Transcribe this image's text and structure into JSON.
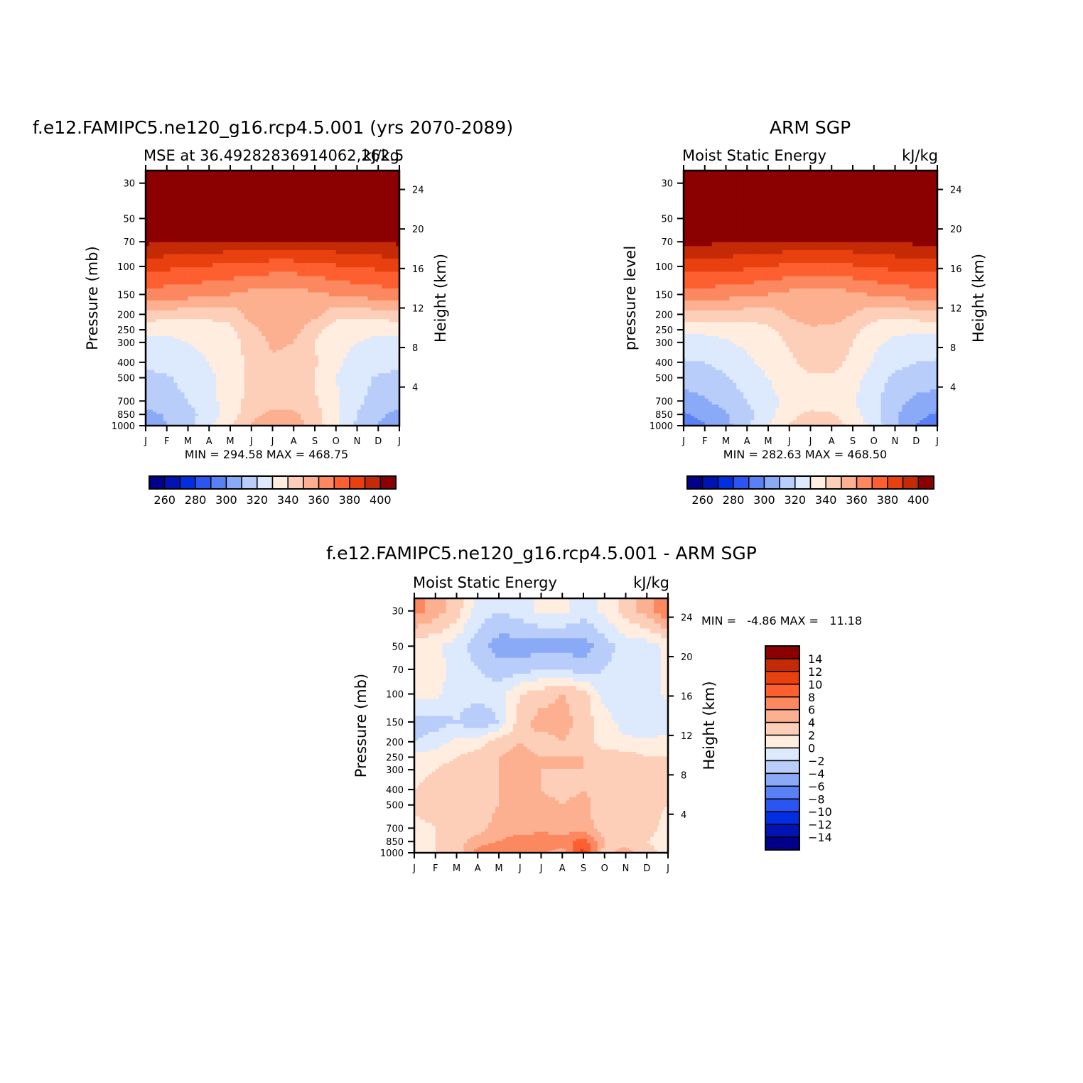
{
  "chart_data": [
    {
      "type": "heatmap",
      "title": "f.e12.FAMIPC5.ne120_g16.rcp4.5.001 (yrs 2070-2089)",
      "subtitle_left": "MSE at 36.49282836914062,262.5",
      "subtitle_right": "kJ/kg",
      "ylabel": "Pressure (mb)",
      "ylabel_right": "Height (km)",
      "x_ticks": [
        "J",
        "F",
        "M",
        "A",
        "M",
        "J",
        "J",
        "A",
        "S",
        "O",
        "N",
        "D",
        "J"
      ],
      "y_ticks": [
        "30",
        "50",
        "70",
        "100",
        "150",
        "200",
        "250",
        "300",
        "400",
        "500",
        "700",
        "850",
        "1000"
      ],
      "y_ticks_right": [
        "24",
        "20",
        "16",
        "12",
        "8",
        "4"
      ],
      "stats": "MIN = 294.58 MAX = 468.75",
      "colorbar_ticks": [
        "260",
        "280",
        "300",
        "320",
        "340",
        "360",
        "380",
        "400"
      ],
      "levels": [
        250,
        260,
        270,
        280,
        290,
        300,
        310,
        320,
        330,
        340,
        350,
        360,
        370,
        380,
        390,
        400
      ],
      "values_by_level": [
        {
          "p": 30,
          "values": [
            468,
            468,
            468,
            468,
            468,
            468,
            468,
            468,
            468,
            468,
            468,
            468,
            468
          ]
        },
        {
          "p": 50,
          "values": [
            460,
            460,
            460,
            460,
            460,
            460,
            460,
            460,
            460,
            460,
            460,
            460,
            460
          ]
        },
        {
          "p": 70,
          "values": [
            392,
            391,
            390,
            389,
            388,
            387,
            386,
            386,
            387,
            388,
            389,
            391,
            392
          ]
        },
        {
          "p": 100,
          "values": [
            373,
            372,
            371,
            369,
            368,
            366,
            365,
            365,
            367,
            369,
            371,
            372,
            373
          ]
        },
        {
          "p": 150,
          "values": [
            356,
            355,
            354,
            352,
            350,
            347,
            345,
            345,
            348,
            351,
            353,
            355,
            356
          ]
        },
        {
          "p": 200,
          "values": [
            336,
            335,
            334,
            333,
            333,
            345,
            350,
            350,
            343,
            333,
            333,
            335,
            336
          ]
        },
        {
          "p": 250,
          "values": [
            322,
            322,
            323,
            325,
            328,
            337,
            345,
            344,
            333,
            325,
            323,
            322,
            322
          ]
        },
        {
          "p": 300,
          "values": [
            318,
            318,
            320,
            323,
            326,
            334,
            342,
            340,
            330,
            323,
            320,
            318,
            318
          ]
        },
        {
          "p": 400,
          "values": [
            312,
            313,
            316,
            320,
            325,
            333,
            338,
            337,
            331,
            322,
            316,
            313,
            312
          ]
        },
        {
          "p": 500,
          "values": [
            308,
            309,
            313,
            318,
            324,
            333,
            336,
            335,
            330,
            320,
            313,
            309,
            308
          ]
        },
        {
          "p": 700,
          "values": [
            304,
            306,
            310,
            316,
            326,
            333,
            336,
            335,
            331,
            322,
            312,
            306,
            304
          ]
        },
        {
          "p": 850,
          "values": [
            297,
            301,
            307,
            314,
            325,
            337,
            343,
            342,
            334,
            322,
            310,
            302,
            297
          ]
        },
        {
          "p": 1000,
          "values": [
            295,
            300,
            307,
            318,
            330,
            341,
            346,
            345,
            336,
            322,
            308,
            299,
            295
          ]
        }
      ]
    },
    {
      "type": "heatmap",
      "title": "ARM SGP",
      "subtitle_left": "Moist Static Energy",
      "subtitle_right": "kJ/kg",
      "ylabel": "pressure level",
      "ylabel_right": "Height (km)",
      "x_ticks": [
        "J",
        "F",
        "M",
        "A",
        "M",
        "J",
        "J",
        "A",
        "S",
        "O",
        "N",
        "D",
        "J"
      ],
      "y_ticks": [
        "30",
        "50",
        "70",
        "100",
        "150",
        "200",
        "250",
        "300",
        "400",
        "500",
        "700",
        "850",
        "1000"
      ],
      "y_ticks_right": [
        "24",
        "20",
        "16",
        "12",
        "8",
        "4"
      ],
      "stats": "MIN = 282.63 MAX = 468.50",
      "colorbar_ticks": [
        "260",
        "280",
        "300",
        "320",
        "340",
        "360",
        "380",
        "400"
      ],
      "levels": [
        250,
        260,
        270,
        280,
        290,
        300,
        310,
        320,
        330,
        340,
        350,
        360,
        370,
        380,
        390,
        400
      ],
      "values_by_level": [
        {
          "p": 30,
          "values": [
            468,
            468,
            468,
            468,
            468,
            468,
            468,
            468,
            468,
            468,
            468,
            468,
            468
          ]
        },
        {
          "p": 50,
          "values": [
            460,
            460,
            460,
            460,
            460,
            460,
            460,
            460,
            460,
            460,
            460,
            460,
            460
          ]
        },
        {
          "p": 70,
          "values": [
            393,
            392,
            391,
            390,
            389,
            388,
            387,
            387,
            388,
            389,
            390,
            392,
            393
          ]
        },
        {
          "p": 100,
          "values": [
            375,
            374,
            373,
            372,
            370,
            368,
            367,
            367,
            369,
            371,
            373,
            374,
            375
          ]
        },
        {
          "p": 150,
          "values": [
            356,
            355,
            354,
            352,
            350,
            347,
            345,
            345,
            348,
            351,
            353,
            355,
            356
          ]
        },
        {
          "p": 200,
          "values": [
            337,
            336,
            336,
            335,
            334,
            342,
            346,
            346,
            340,
            333,
            333,
            335,
            337
          ]
        },
        {
          "p": 250,
          "values": [
            322,
            322,
            323,
            325,
            328,
            334,
            338,
            337,
            333,
            326,
            322,
            322,
            322
          ]
        },
        {
          "p": 300,
          "values": [
            316,
            317,
            319,
            322,
            325,
            331,
            336,
            336,
            330,
            322,
            318,
            316,
            316
          ]
        },
        {
          "p": 400,
          "values": [
            309,
            310,
            314,
            318,
            323,
            328,
            333,
            333,
            328,
            319,
            313,
            310,
            309
          ]
        },
        {
          "p": 500,
          "values": [
            304,
            305,
            309,
            314,
            320,
            325,
            329,
            329,
            324,
            315,
            308,
            305,
            304
          ]
        },
        {
          "p": 700,
          "values": [
            296,
            299,
            304,
            310,
            317,
            323,
            325,
            325,
            321,
            313,
            303,
            298,
            296
          ]
        },
        {
          "p": 850,
          "values": [
            289,
            293,
            299,
            307,
            316,
            327,
            332,
            331,
            324,
            314,
            302,
            292,
            289
          ]
        },
        {
          "p": 1000,
          "values": [
            284,
            289,
            297,
            308,
            320,
            331,
            337,
            336,
            327,
            316,
            302,
            290,
            284
          ]
        }
      ]
    },
    {
      "type": "heatmap",
      "title": "f.e12.FAMIPC5.ne120_g16.rcp4.5.001 - ARM SGP",
      "subtitle_left": "Moist Static Energy",
      "subtitle_right": "kJ/kg",
      "ylabel": "Pressure (mb)",
      "ylabel_right": "Height (km)",
      "x_ticks": [
        "J",
        "F",
        "M",
        "A",
        "M",
        "J",
        "J",
        "A",
        "S",
        "O",
        "N",
        "D",
        "J"
      ],
      "y_ticks": [
        "30",
        "50",
        "70",
        "100",
        "150",
        "200",
        "250",
        "300",
        "400",
        "500",
        "700",
        "850",
        "1000"
      ],
      "y_ticks_right": [
        "24",
        "20",
        "16",
        "12",
        "8",
        "4"
      ],
      "stats": "MIN =   -4.86 MAX =   11.18",
      "colorbar_ticks": [
        "14",
        "12",
        "10",
        "8",
        "6",
        "4",
        "2",
        "0",
        "-2",
        "-4",
        "-6",
        "-8",
        "-10",
        "-12",
        "-14"
      ],
      "levels": [
        -14,
        -12,
        -10,
        -8,
        -6,
        -4,
        -2,
        0,
        2,
        4,
        6,
        8,
        10,
        12,
        14
      ],
      "values_by_level": [
        {
          "p": 30,
          "values": [
            7,
            5,
            3,
            -1,
            -2,
            -1,
            0.5,
            0.5,
            -1,
            0.5,
            3,
            5,
            8
          ]
        },
        {
          "p": 50,
          "values": [
            0.5,
            0.5,
            -1,
            -3,
            -5,
            -5,
            -5,
            -5,
            -5,
            -3,
            -1,
            -1,
            0.5
          ]
        },
        {
          "p": 70,
          "values": [
            0.5,
            1,
            -1,
            -2,
            -3,
            -3,
            -2,
            -2,
            -3,
            -2,
            -1,
            -1,
            0.5
          ]
        },
        {
          "p": 100,
          "values": [
            0.5,
            0.5,
            -1,
            -1,
            -1,
            2,
            3,
            4,
            3,
            -1,
            -1,
            -1,
            0.5
          ]
        },
        {
          "p": 150,
          "values": [
            -3,
            -3,
            -2,
            -4,
            -2,
            3,
            5,
            5,
            3,
            1,
            -1,
            -2,
            -2
          ]
        },
        {
          "p": 200,
          "values": [
            -2,
            -1,
            0.5,
            1,
            3,
            4,
            3,
            4,
            3,
            1,
            0.5,
            0.5,
            1
          ]
        },
        {
          "p": 250,
          "values": [
            1,
            1,
            2,
            3,
            4,
            5,
            4,
            4,
            4,
            3,
            3,
            2,
            2
          ]
        },
        {
          "p": 300,
          "values": [
            1,
            2,
            3,
            3,
            4,
            5,
            4,
            4,
            4,
            3,
            3,
            2,
            2
          ]
        },
        {
          "p": 400,
          "values": [
            2,
            3,
            3,
            3,
            4,
            5,
            4,
            3,
            4,
            3,
            3,
            3,
            2
          ]
        },
        {
          "p": 500,
          "values": [
            3,
            3,
            3,
            3,
            4,
            5,
            5,
            4,
            5,
            2,
            3,
            3,
            2
          ]
        },
        {
          "p": 700,
          "values": [
            1,
            2,
            3,
            3,
            5,
            5,
            5,
            5,
            5,
            3,
            3,
            3,
            1
          ]
        },
        {
          "p": 850,
          "values": [
            1,
            2,
            3,
            5,
            6,
            7,
            8,
            7,
            9,
            4,
            3,
            2,
            1
          ]
        },
        {
          "p": 1000,
          "values": [
            1,
            2,
            3,
            7,
            8,
            7,
            6,
            5,
            11,
            3,
            5,
            3,
            1
          ]
        }
      ]
    }
  ],
  "colors": {
    "msePalette": [
      "#00008b",
      "#0014b4",
      "#002ee0",
      "#2a55f0",
      "#5a80f5",
      "#8aaaf8",
      "#b8cdfa",
      "#dde9fc",
      "#ffede0",
      "#fdcfb8",
      "#fcb090",
      "#fc8860",
      "#fd5f30",
      "#e8400f",
      "#c42a06",
      "#8b0000"
    ],
    "diffPalette": [
      "#00008b",
      "#0014b4",
      "#002ee0",
      "#2a55f0",
      "#5a80f5",
      "#8aaaf8",
      "#b8cdfa",
      "#dde9fc",
      "#ffede0",
      "#fdcfb8",
      "#fcb090",
      "#fc8860",
      "#fd5f30",
      "#e8400f",
      "#c42a06",
      "#8b0000"
    ]
  }
}
